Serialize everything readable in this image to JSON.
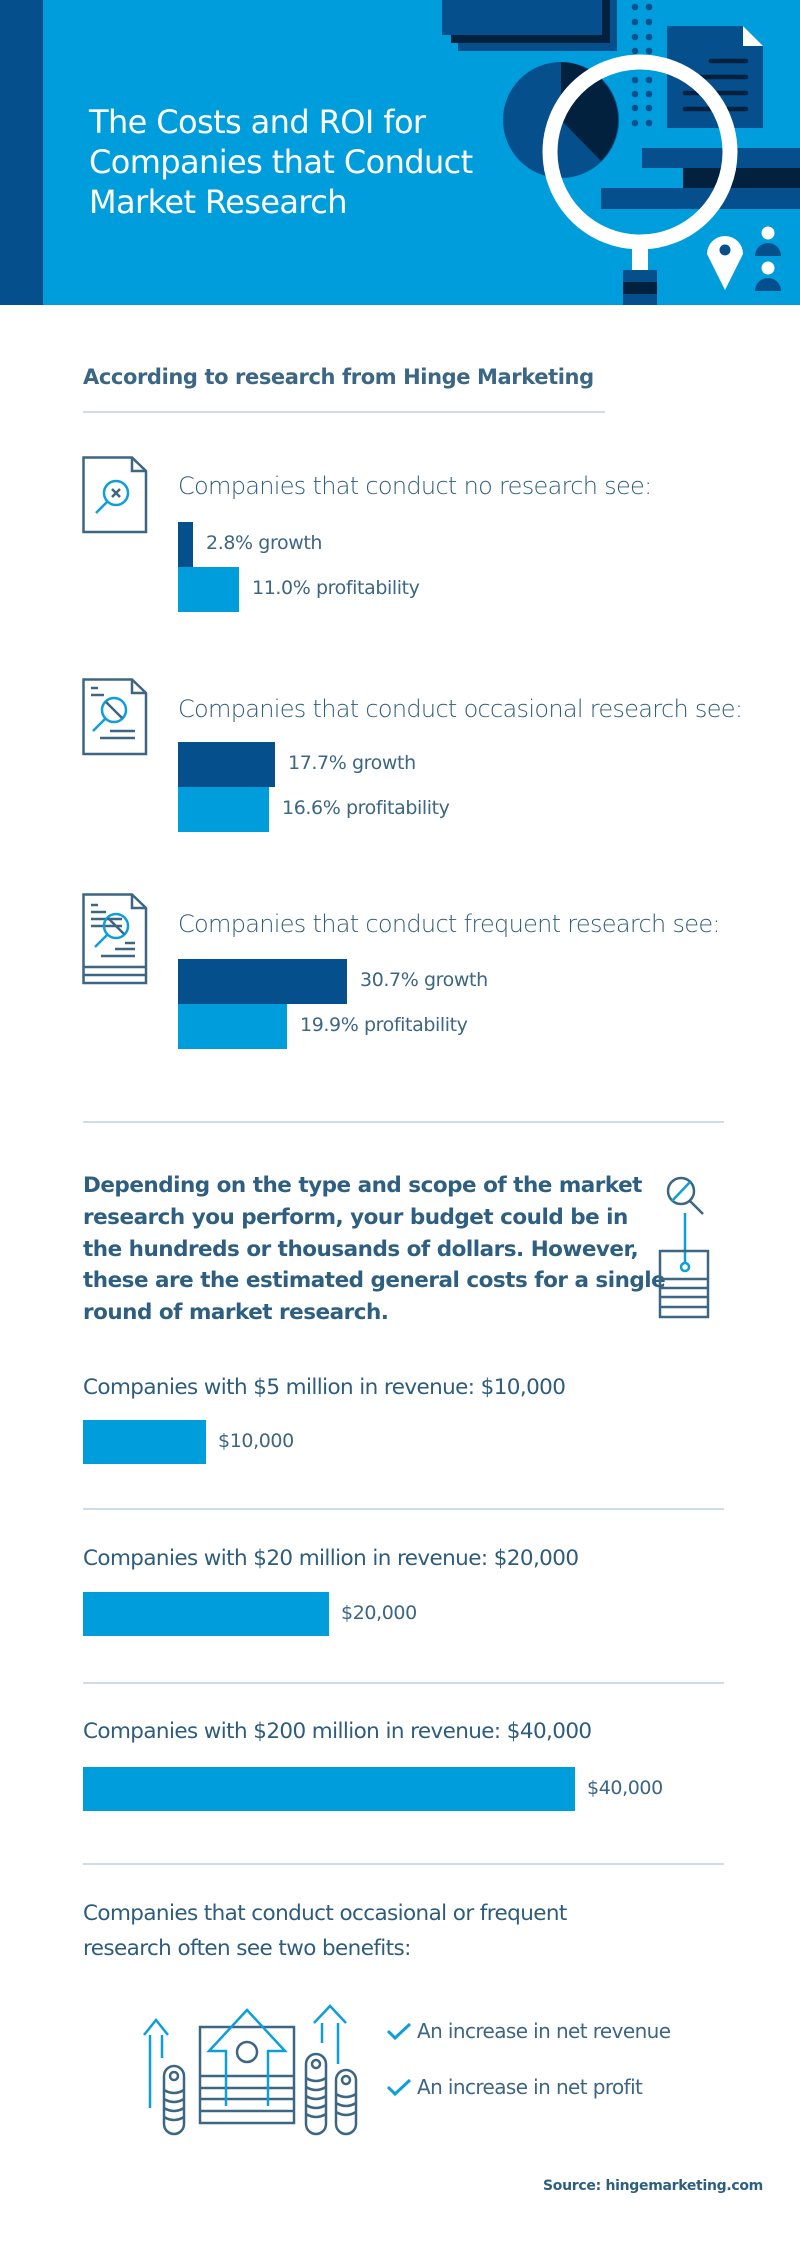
{
  "header": {
    "title_lines": [
      "The Costs and ROI for",
      "Companies that Conduct",
      "Market Research"
    ]
  },
  "intro": {
    "title": "According to research from Hinge Marketing"
  },
  "chart_data": [
    {
      "type": "bar",
      "orientation": "horizontal",
      "title": "According to research from Hinge Marketing",
      "groups": [
        {
          "heading": "Companies that conduct no research see:",
          "icon": "document-magnifier-x-icon",
          "bars": [
            {
              "metric": "growth",
              "value": 2.8,
              "label": "2.8% growth"
            },
            {
              "metric": "profitability",
              "value": 11.0,
              "label": "11.0% profitability"
            }
          ]
        },
        {
          "heading": "Companies that conduct occasional research see:",
          "icon": "document-magnifier-lines-icon",
          "bars": [
            {
              "metric": "growth",
              "value": 17.7,
              "label": "17.7% growth"
            },
            {
              "metric": "profitability",
              "value": 16.6,
              "label": "16.6% profitability"
            }
          ]
        },
        {
          "heading": "Companies that conduct frequent research see:",
          "icon": "document-stack-magnifier-icon",
          "bars": [
            {
              "metric": "growth",
              "value": 30.7,
              "label": "30.7% growth"
            },
            {
              "metric": "profitability",
              "value": 19.9,
              "label": "19.9% profitability"
            }
          ]
        }
      ],
      "unit": "%",
      "series_colors": {
        "growth": "#044f8c",
        "profitability": "#009ddc"
      }
    },
    {
      "type": "bar",
      "orientation": "horizontal",
      "title": "Estimated general costs for a single round of market research",
      "categories": [
        "Companies with $5 million in revenue: $10,000",
        "Companies with $20 million in revenue: $20,000",
        "Companies with $200 million in revenue: $40,000"
      ],
      "values": [
        10000,
        20000,
        40000
      ],
      "value_labels": [
        "$10,000",
        "$20,000",
        "$40,000"
      ],
      "unit": "USD",
      "color": "#009ddc"
    }
  ],
  "costs": {
    "paragraph_lines": [
      "Depending on the type and scope of the market",
      "research you perform, your budget could be in",
      "the hundreds or thousands of dollars. However,",
      "these are the estimated general costs for a single",
      "round of market research."
    ],
    "icon": "magnifier-budget-list-icon"
  },
  "benefits": {
    "heading_lines": [
      "Companies that conduct occasional or frequent",
      "research often see two benefits:"
    ],
    "icon": "growth-money-icon",
    "items": [
      {
        "icon": "check-icon",
        "text": "An increase in net revenue"
      },
      {
        "icon": "check-icon",
        "text": "An increase in net profit"
      }
    ]
  },
  "source": "Source: hingemarketing.com",
  "colors": {
    "header_bg": "#009ddc",
    "header_dark": "#044f8c",
    "header_darkest": "#01213f",
    "text": "#2e5c7c",
    "rule": "#cfdde8",
    "icon_outline": "#3d6683",
    "icon_accent": "#0d9fdc"
  }
}
